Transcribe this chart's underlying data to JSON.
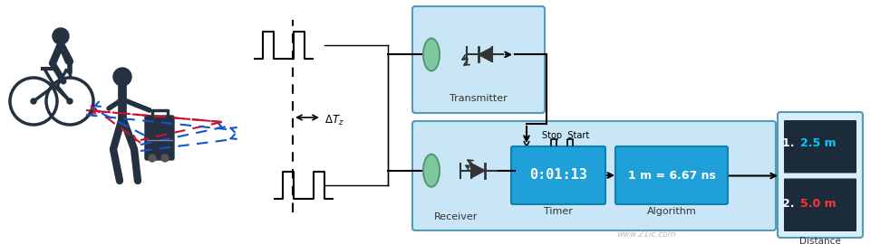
{
  "bg_color": "#ffffff",
  "light_blue": "#c8e6f5",
  "blue_box": "#1fa0d8",
  "dark_box": "#1c2b3a",
  "green_oval": "#80c8a0",
  "figure_color": "#253040",
  "red_arrow": "#cc1133",
  "blue_arrow": "#1155cc",
  "border_color": "#5599bb",
  "transmitter_label": "Transmitter",
  "receiver_label": "Receiver",
  "timer_label": "Timer",
  "algorithm_label": "Algorithm",
  "distance_label": "Distance",
  "timer_text": "0:01:13",
  "algo_text": "1 m = 6.67 ns",
  "dist1_white": "1. ",
  "dist1_val": "2.5 m",
  "dist2_white": "2. ",
  "dist2_val": "5.0 m",
  "dist1_color": "#00ccff",
  "dist2_color": "#ff3333",
  "stop_start_text": "Stop  Start",
  "watermark": "www.21ic.com"
}
